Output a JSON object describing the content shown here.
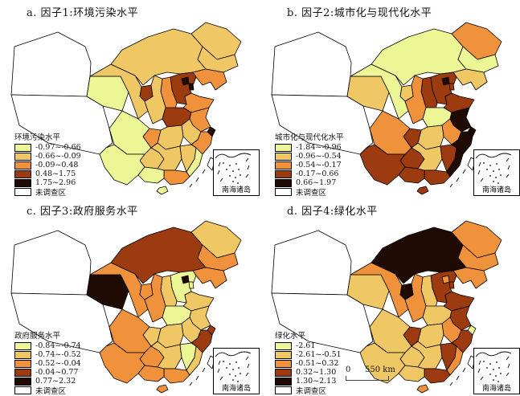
{
  "page": {
    "background": "#ffffff"
  },
  "chart_data": {
    "type": "choropleth",
    "region": "China provinces, 2x2 small multiples of factor scores",
    "palette": [
      "#edf694",
      "#efc765",
      "#f0913c",
      "#9c3a10",
      "#200a04"
    ],
    "no_data_color": "#ffffff",
    "inset_label": "南海诸岛",
    "scale_bar": {
      "start": "0",
      "end": "550 km"
    },
    "maps": [
      {
        "id": "a",
        "title": "a. 因子1:环境污染水平",
        "legend_title": "环境污染水平",
        "class_labels": [
          "-0.97~-0.66",
          "-0.66~-0.09",
          "-0.09~0.48",
          "0.48~1.75",
          "1.75~2.96"
        ],
        "no_data_label": "未调查区",
        "province_classes": {
          "Xinjiang": 0,
          "Tibet": 0,
          "Qinghai": 1,
          "Gansu": 2,
          "InnerMongolia": 2,
          "Heilongjiang": 2,
          "Jilin": 2,
          "Liaoning": 3,
          "Beijing": 5,
          "Tianjin": 5,
          "Hebei": 4,
          "Shanxi": 3,
          "Shaanxi": 2,
          "Ningxia": 4,
          "Shandong": 3,
          "Henan": 4,
          "Jiangsu": 3,
          "Shanghai": 5,
          "Anhui": 2,
          "Zhejiang": 3,
          "Hubei": 2,
          "Hunan": 2,
          "Sichuan": 1,
          "Chongqing": 3,
          "Guizhou": 2,
          "Yunnan": 1,
          "Jiangxi": 2,
          "Fujian": 1,
          "Guangdong": 3,
          "Guangxi": 1,
          "Hainan": 1,
          "Taiwan": 0
        }
      },
      {
        "id": "b",
        "title": "b. 因子2:城市化与现代化水平",
        "legend_title": "城市化与现代化水平",
        "class_labels": [
          "-1.84~-0.96",
          "-0.96~-0.54",
          "-0.54~-0.17",
          "-0.17~0.66",
          "0.66~1.97"
        ],
        "no_data_label": "未调查区",
        "province_classes": {
          "Xinjiang": 0,
          "Tibet": 0,
          "Qinghai": 2,
          "Gansu": 1,
          "InnerMongolia": 1,
          "Heilongjiang": 3,
          "Jilin": 1,
          "Liaoning": 2,
          "Beijing": 5,
          "Tianjin": 4,
          "Hebei": 4,
          "Shanxi": 4,
          "Shaanxi": 3,
          "Ningxia": 2,
          "Shandong": 4,
          "Henan": 1,
          "Jiangsu": 5,
          "Shanghai": 5,
          "Anhui": 3,
          "Zhejiang": 5,
          "Hubei": 2,
          "Hunan": 2,
          "Sichuan": 3,
          "Chongqing": 4,
          "Guizhou": 4,
          "Yunnan": 4,
          "Jiangxi": 4,
          "Fujian": 5,
          "Guangdong": 4,
          "Guangxi": 4,
          "Hainan": 4,
          "Taiwan": 0
        }
      },
      {
        "id": "c",
        "title": "c. 因子3:政府服务水平",
        "legend_title": "政府服务水平",
        "class_labels": [
          "-0.84~-0.74",
          "-0.74~-0.52",
          "-0.52~-0.04",
          "-0.04~0.77",
          "0.77~2.32"
        ],
        "no_data_label": "未调查区",
        "province_classes": {
          "Xinjiang": 0,
          "Tibet": 0,
          "Qinghai": 5,
          "Gansu": 3,
          "InnerMongolia": 4,
          "Heilongjiang": 2,
          "Jilin": 3,
          "Liaoning": 3,
          "Beijing": 5,
          "Tianjin": 1,
          "Hebei": 1,
          "Shanxi": 2,
          "Shaanxi": 3,
          "Ningxia": 3,
          "Shandong": 2,
          "Henan": 1,
          "Jiangsu": 2,
          "Shanghai": 4,
          "Anhui": 2,
          "Zhejiang": 4,
          "Hubei": 2,
          "Hunan": 2,
          "Sichuan": 3,
          "Chongqing": 2,
          "Guizhou": 3,
          "Yunnan": 3,
          "Jiangxi": 1,
          "Fujian": 2,
          "Guangdong": 3,
          "Guangxi": 3,
          "Hainan": 3,
          "Taiwan": 0
        }
      },
      {
        "id": "d",
        "title": "d. 因子4:绿化水平",
        "legend_title": "绿化水平",
        "class_labels": [
          "-2.61",
          "-2.61~-0.51",
          "-0.51~0.32",
          "0.32~1.30",
          "1.30~2.13"
        ],
        "no_data_label": "未调查区",
        "province_classes": {
          "Xinjiang": 0,
          "Tibet": 0,
          "Qinghai": 2,
          "Gansu": 3,
          "InnerMongolia": 5,
          "Heilongjiang": 3,
          "Jilin": 3,
          "Liaoning": 3,
          "Beijing": 3,
          "Tianjin": 4,
          "Hebei": 4,
          "Shanxi": 2,
          "Shaanxi": 3,
          "Ningxia": 5,
          "Shandong": 4,
          "Henan": 2,
          "Jiangsu": 4,
          "Shanghai": 1,
          "Anhui": 3,
          "Zhejiang": 4,
          "Hubei": 2,
          "Hunan": 2,
          "Sichuan": 2,
          "Chongqing": 4,
          "Guizhou": 2,
          "Yunnan": 2,
          "Jiangxi": 4,
          "Fujian": 3,
          "Guangdong": 4,
          "Guangxi": 2,
          "Hainan": 3,
          "Taiwan": 0
        }
      }
    ]
  }
}
